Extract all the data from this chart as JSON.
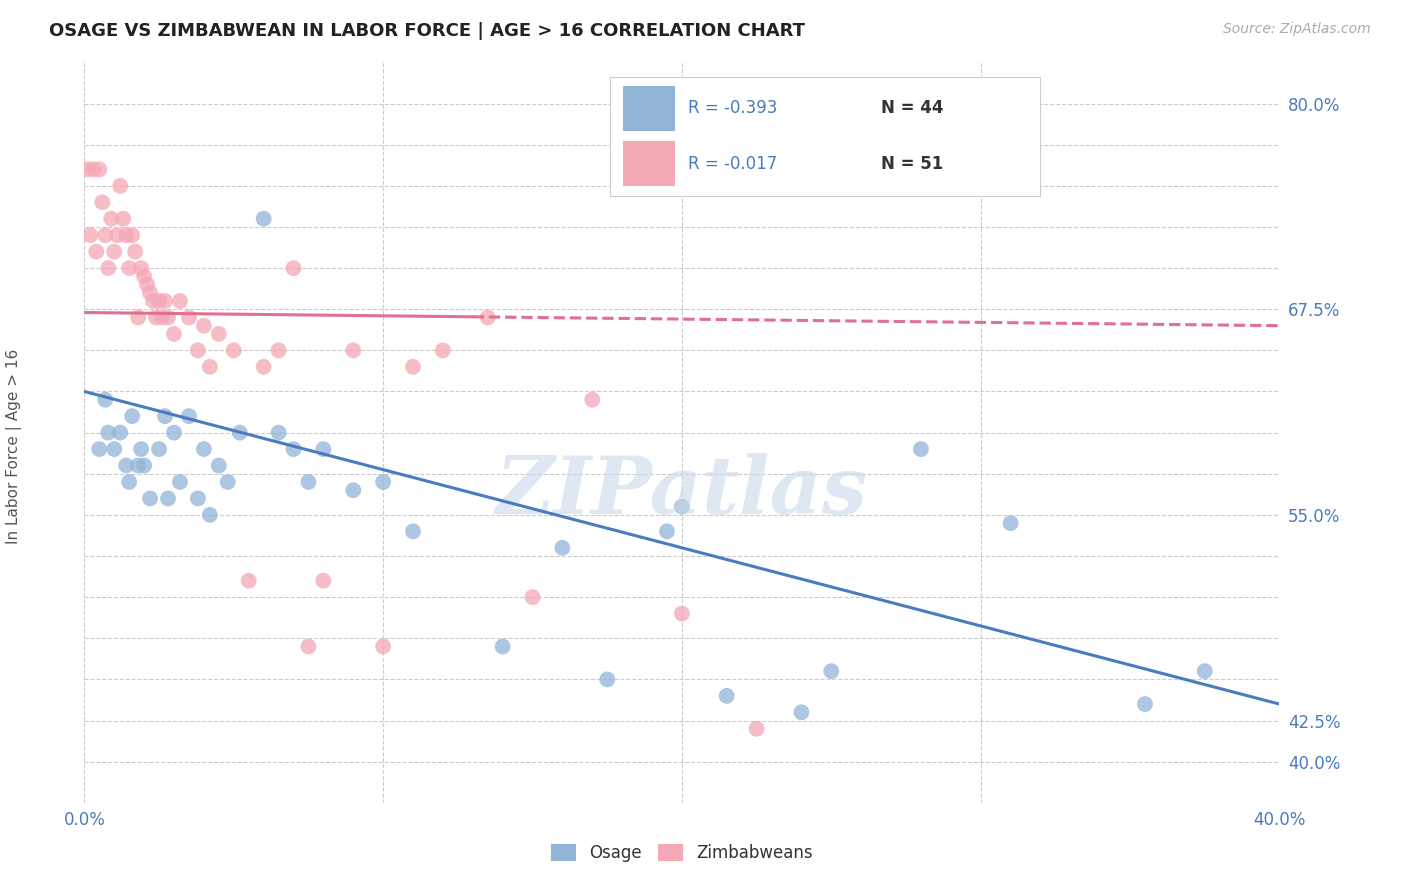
{
  "title": "OSAGE VS ZIMBABWEAN IN LABOR FORCE | AGE > 16 CORRELATION CHART",
  "source": "Source: ZipAtlas.com",
  "ylabel": "In Labor Force | Age > 16",
  "xlim": [
    0.0,
    0.4
  ],
  "ylim": [
    0.375,
    0.825
  ],
  "yticks_grid": [
    0.4,
    0.425,
    0.45,
    0.475,
    0.5,
    0.525,
    0.55,
    0.575,
    0.6,
    0.625,
    0.65,
    0.675,
    0.7,
    0.725,
    0.75,
    0.775,
    0.8
  ],
  "ytick_labels_show": [
    0.4,
    0.425,
    0.55,
    0.675,
    0.8
  ],
  "ytick_label_strings": [
    "40.0%",
    "42.5%",
    "55.0%",
    "67.5%",
    "80.0%"
  ],
  "xticks": [
    0.0,
    0.1,
    0.2,
    0.3,
    0.4
  ],
  "xtick_labels": [
    "0.0%",
    "",
    "",
    "",
    "40.0%"
  ],
  "grid_color": "#cccccc",
  "background_color": "#ffffff",
  "blue_color": "#92b4d7",
  "pink_color": "#f4a7b5",
  "blue_line_color": "#4a7bbf",
  "pink_line_color": "#e07090",
  "blue_R": "-0.393",
  "blue_N": "44",
  "pink_R": "-0.017",
  "pink_N": "51",
  "blue_line_x": [
    0.0,
    0.4
  ],
  "blue_line_y": [
    0.625,
    0.435
  ],
  "pink_line_x0": 0.0,
  "pink_line_x_solid_end": 0.13,
  "pink_line_x1": 0.4,
  "pink_line_y0": 0.673,
  "pink_line_y1": 0.665,
  "osage_x": [
    0.005,
    0.007,
    0.008,
    0.01,
    0.012,
    0.014,
    0.015,
    0.016,
    0.018,
    0.019,
    0.02,
    0.022,
    0.025,
    0.027,
    0.028,
    0.03,
    0.032,
    0.035,
    0.038,
    0.04,
    0.042,
    0.045,
    0.048,
    0.052,
    0.06,
    0.065,
    0.07,
    0.075,
    0.08,
    0.09,
    0.1,
    0.11,
    0.14,
    0.16,
    0.175,
    0.195,
    0.2,
    0.215,
    0.24,
    0.25,
    0.28,
    0.31,
    0.355,
    0.375
  ],
  "osage_y": [
    0.59,
    0.62,
    0.6,
    0.59,
    0.6,
    0.58,
    0.57,
    0.61,
    0.58,
    0.59,
    0.58,
    0.56,
    0.59,
    0.61,
    0.56,
    0.6,
    0.57,
    0.61,
    0.56,
    0.59,
    0.55,
    0.58,
    0.57,
    0.6,
    0.73,
    0.6,
    0.59,
    0.57,
    0.59,
    0.565,
    0.57,
    0.54,
    0.47,
    0.53,
    0.45,
    0.54,
    0.555,
    0.44,
    0.43,
    0.455,
    0.59,
    0.545,
    0.435,
    0.455
  ],
  "zimbabwean_x": [
    0.001,
    0.002,
    0.003,
    0.004,
    0.005,
    0.006,
    0.007,
    0.008,
    0.009,
    0.01,
    0.011,
    0.012,
    0.013,
    0.014,
    0.015,
    0.016,
    0.017,
    0.018,
    0.019,
    0.02,
    0.021,
    0.022,
    0.023,
    0.024,
    0.025,
    0.026,
    0.027,
    0.028,
    0.03,
    0.032,
    0.035,
    0.038,
    0.04,
    0.042,
    0.045,
    0.05,
    0.055,
    0.06,
    0.065,
    0.07,
    0.075,
    0.08,
    0.09,
    0.1,
    0.11,
    0.12,
    0.135,
    0.15,
    0.17,
    0.2,
    0.225
  ],
  "zimbabwean_y": [
    0.76,
    0.72,
    0.76,
    0.71,
    0.76,
    0.74,
    0.72,
    0.7,
    0.73,
    0.71,
    0.72,
    0.75,
    0.73,
    0.72,
    0.7,
    0.72,
    0.71,
    0.67,
    0.7,
    0.695,
    0.69,
    0.685,
    0.68,
    0.67,
    0.68,
    0.67,
    0.68,
    0.67,
    0.66,
    0.68,
    0.67,
    0.65,
    0.665,
    0.64,
    0.66,
    0.65,
    0.51,
    0.64,
    0.65,
    0.7,
    0.47,
    0.51,
    0.65,
    0.47,
    0.64,
    0.65,
    0.67,
    0.5,
    0.62,
    0.49,
    0.42
  ],
  "watermark": "ZIPatlas",
  "label_color": "#4a7bbf",
  "R_label_color": "#4a7bbf",
  "N_label_color": "#333333"
}
